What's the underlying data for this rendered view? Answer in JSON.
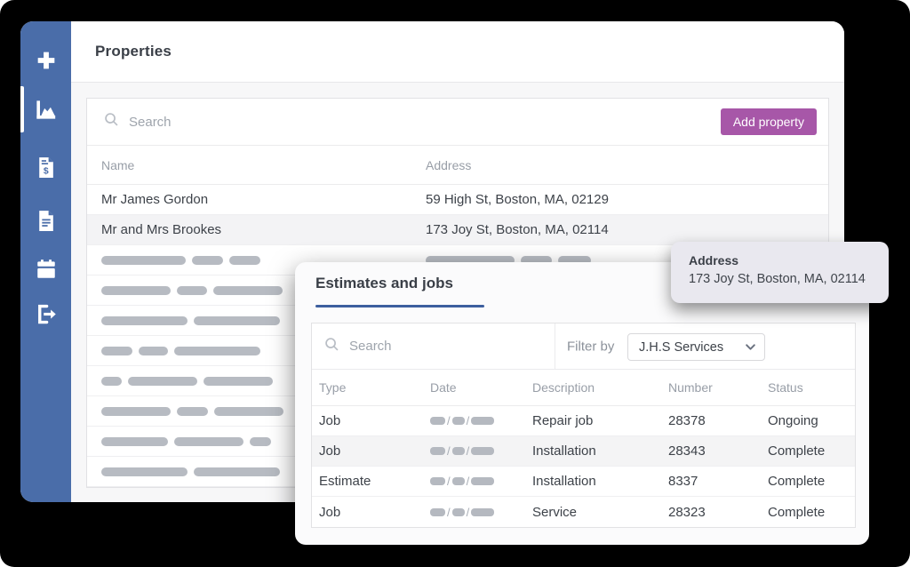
{
  "theme": {
    "background": "#000000",
    "sidebar_blue": "#4a6da9",
    "accent_purple": "#a757a8",
    "title_underline_blue": "#3d5f9f",
    "placeholder_gray": "#b7bbc2"
  },
  "sidebar": {
    "items": [
      {
        "icon": "plus-icon",
        "active": false
      },
      {
        "icon": "chart-icon",
        "active": true
      },
      {
        "icon": "invoice-icon",
        "active": false
      },
      {
        "icon": "document-icon",
        "active": false
      },
      {
        "icon": "calendar-icon",
        "active": false
      },
      {
        "icon": "signout-icon",
        "active": false
      }
    ]
  },
  "properties": {
    "title": "Properties",
    "search_placeholder": "Search",
    "add_button_label": "Add property",
    "columns": [
      "Name",
      "Address"
    ],
    "rows": [
      {
        "name": "Mr James Gordon",
        "address": "59 High St, Boston, MA, 02129",
        "highlight": false
      },
      {
        "name": "Mr and Mrs Brookes",
        "address": "173 Joy St, Boston, MA, 02114",
        "highlight": true
      }
    ],
    "placeholder_rows": [
      {
        "name_bars": [
          95,
          35,
          35
        ],
        "address_bars": [
          100,
          35,
          37
        ]
      },
      {
        "name_bars": [
          78,
          34,
          78
        ],
        "address_bars": []
      },
      {
        "name_bars": [
          97,
          97
        ],
        "address_bars": []
      },
      {
        "name_bars": [
          35,
          33,
          97
        ],
        "address_bars": []
      },
      {
        "name_bars": [
          23,
          78,
          78
        ],
        "address_bars": []
      },
      {
        "name_bars": [
          78,
          35,
          78
        ],
        "address_bars": []
      },
      {
        "name_bars": [
          75,
          78,
          24
        ],
        "address_bars": []
      },
      {
        "name_bars": [
          97,
          97
        ],
        "address_bars": []
      }
    ]
  },
  "tooltip": {
    "title": "Address",
    "value": "173 Joy St, Boston, MA, 02114"
  },
  "estimates": {
    "title": "Estimates and jobs",
    "search_placeholder": "Search",
    "filter_label": "Filter by",
    "filter_value": "J.H.S Services",
    "columns": [
      "Type",
      "Date",
      "Description",
      "Number",
      "Status"
    ],
    "date_bars": [
      17,
      14,
      26
    ],
    "rows": [
      {
        "type": "Job",
        "description": "Repair job",
        "number": "28378",
        "status": "Ongoing",
        "highlight": false
      },
      {
        "type": "Job",
        "description": "Installation",
        "number": "28343",
        "status": "Complete",
        "highlight": true
      },
      {
        "type": "Estimate",
        "description": "Installation",
        "number": "8337",
        "status": "Complete",
        "highlight": false
      },
      {
        "type": "Job",
        "description": "Service",
        "number": "28323",
        "status": "Complete",
        "highlight": false
      }
    ]
  }
}
